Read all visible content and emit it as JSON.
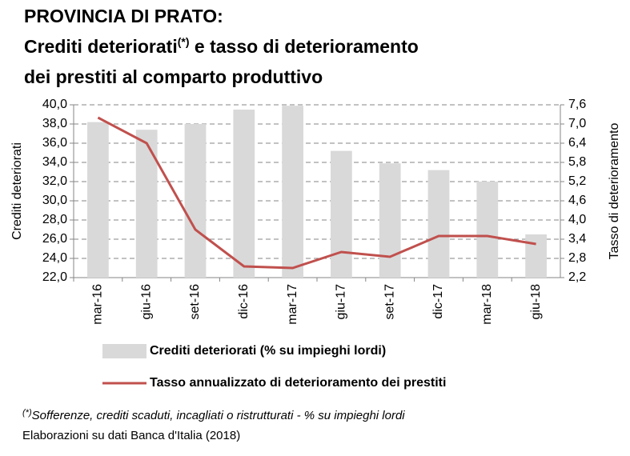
{
  "chart_data": {
    "type": "bar-line",
    "title_line1": "PROVINCIA DI PRATO:",
    "title_line2a": "Crediti deteriorati",
    "title_superscript": "(*)",
    "title_line2b": " e tasso di deterioramento",
    "title_line3": "dei prestiti al comparto produttivo",
    "y_label": "Crediti deteriorati",
    "y2_label": "Tasso di deterioramento",
    "categories": [
      "mar-16",
      "giu-16",
      "set-16",
      "dic-16",
      "mar-17",
      "giu-17",
      "set-17",
      "dic-17",
      "mar-18",
      "giu-18"
    ],
    "series": [
      {
        "name": "Crediti deteriorati (% su impieghi lordi)",
        "type": "bar",
        "color": "#d9d9d9",
        "axis": "y",
        "values": [
          38.2,
          37.4,
          38.0,
          39.5,
          39.9,
          35.2,
          33.9,
          33.2,
          32.0,
          26.5
        ]
      },
      {
        "name": "Tasso annualizzato di deterioramento dei prestiti",
        "type": "line",
        "color": "#c0504d",
        "axis": "y2",
        "values": [
          7.2,
          6.4,
          3.7,
          2.55,
          2.5,
          3.0,
          2.85,
          3.5,
          3.5,
          3.25
        ]
      }
    ],
    "ylim": [
      22,
      40
    ],
    "yticks": [
      {
        "value": 22,
        "label": "22,0"
      },
      {
        "value": 24,
        "label": "24,0"
      },
      {
        "value": 26,
        "label": "26,0"
      },
      {
        "value": 28,
        "label": "28,0"
      },
      {
        "value": 30,
        "label": "30,0"
      },
      {
        "value": 32,
        "label": "32,0"
      },
      {
        "value": 34,
        "label": "34,0"
      },
      {
        "value": 36,
        "label": "36,0"
      },
      {
        "value": 38,
        "label": "38,0"
      },
      {
        "value": 40,
        "label": "40,0"
      }
    ],
    "y2lim": [
      2.2,
      7.6
    ],
    "y2ticks": [
      {
        "value": 2.2,
        "label": "2,2"
      },
      {
        "value": 2.8,
        "label": "2,8"
      },
      {
        "value": 3.4,
        "label": "3,4"
      },
      {
        "value": 4.0,
        "label": "4,0"
      },
      {
        "value": 4.6,
        "label": "4,6"
      },
      {
        "value": 5.2,
        "label": "5,2"
      },
      {
        "value": 5.8,
        "label": "5,8"
      },
      {
        "value": 6.4,
        "label": "6,4"
      },
      {
        "value": 7.0,
        "label": "7,0"
      },
      {
        "value": 7.6,
        "label": "7,6"
      }
    ],
    "grid": true,
    "footnote_mark": "(*)",
    "footnote": "Sofferenze, crediti scaduti, incagliati o ristrutturati - % su impieghi lordi",
    "source": "Elaborazioni su dati Banca d'Italia (2018)"
  }
}
